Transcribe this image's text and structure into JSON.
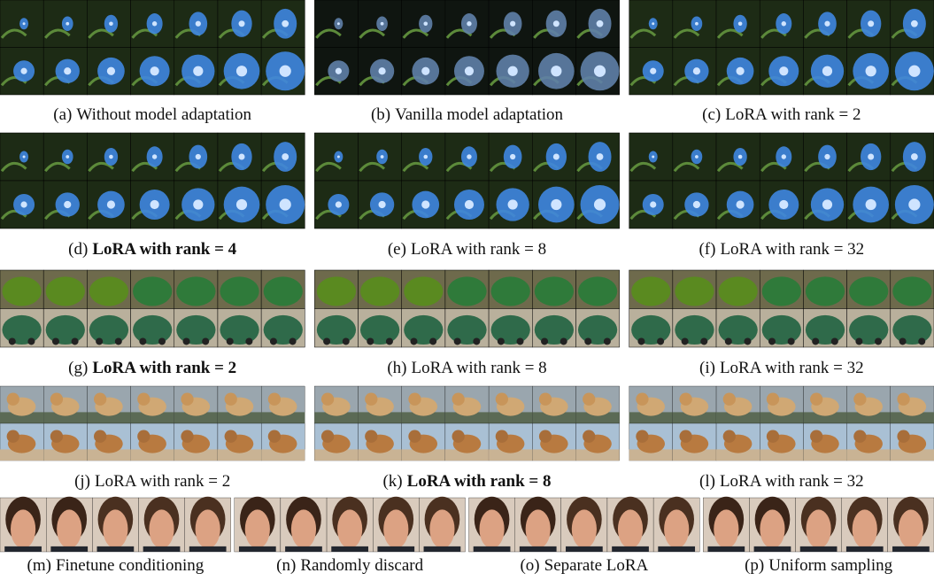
{
  "rows": [
    {
      "panels": [
        {
          "label": "(a)",
          "caption": "Without model adaptation",
          "bold": false
        },
        {
          "label": "(b)",
          "caption": "Vanilla model adaptation",
          "bold": false
        },
        {
          "label": "(c)",
          "caption": "LoRA with rank = 2",
          "bold": false
        }
      ]
    },
    {
      "panels": [
        {
          "label": "(d)",
          "caption": "LoRA with rank = 4",
          "bold": true
        },
        {
          "label": "(e)",
          "caption": "LoRA with rank = 8",
          "bold": false
        },
        {
          "label": "(f)",
          "caption": "LoRA with rank = 32",
          "bold": false
        }
      ]
    },
    {
      "panels": [
        {
          "label": "(g)",
          "caption": "LoRA with rank = 2",
          "bold": true
        },
        {
          "label": "(h)",
          "caption": "LoRA with rank = 8",
          "bold": false
        },
        {
          "label": "(i)",
          "caption": "LoRA with rank = 32",
          "bold": false
        }
      ]
    },
    {
      "panels": [
        {
          "label": "(j)",
          "caption": "LoRA with rank = 2",
          "bold": false
        },
        {
          "label": "(k)",
          "caption": "LoRA with rank = 8",
          "bold": true
        },
        {
          "label": "(l)",
          "caption": "LoRA with rank = 32",
          "bold": false
        }
      ]
    },
    {
      "panels": [
        {
          "label": "(m)",
          "caption": "Finetune conditioning",
          "bold": false
        },
        {
          "label": "(n)",
          "caption": "Randomly discard",
          "bold": false
        },
        {
          "label": "(o)",
          "caption": "Separate LoRA",
          "bold": false
        },
        {
          "label": "(p)",
          "caption": "Uniform sampling",
          "bold": false
        }
      ]
    }
  ]
}
